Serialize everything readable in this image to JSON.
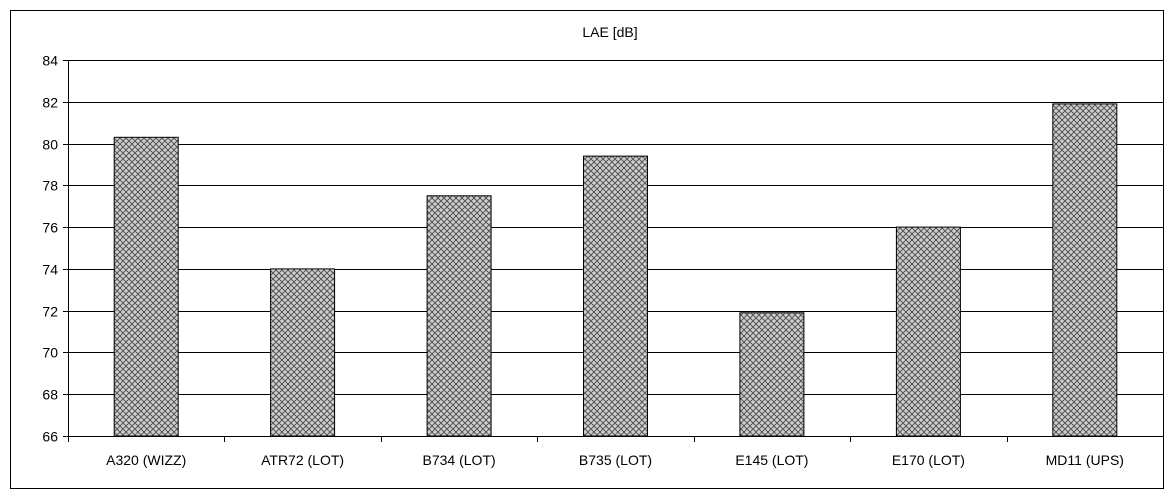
{
  "chart_data": {
    "type": "bar",
    "title": "LAE [dB]",
    "xlabel": "",
    "ylabel": "",
    "categories": [
      "A320 (WIZZ)",
      "ATR72 (LOT)",
      "B734 (LOT)",
      "B735 (LOT)",
      "E145 (LOT)",
      "E170 (LOT)",
      "MD11 (UPS)"
    ],
    "values": [
      80.3,
      74.0,
      77.5,
      79.4,
      71.9,
      76.0,
      81.9
    ],
    "ylim": [
      66,
      84
    ],
    "yticks": [
      "66",
      "68",
      "70",
      "72",
      "74",
      "76",
      "78",
      "80",
      "82",
      "84"
    ],
    "grid": true,
    "legend": "none",
    "bar_pattern": "crosshatch",
    "colors": {
      "bar_fill": "#c8c8c8",
      "bar_hatch": "#555555",
      "axis": "#000000",
      "grid": "#000000"
    }
  }
}
